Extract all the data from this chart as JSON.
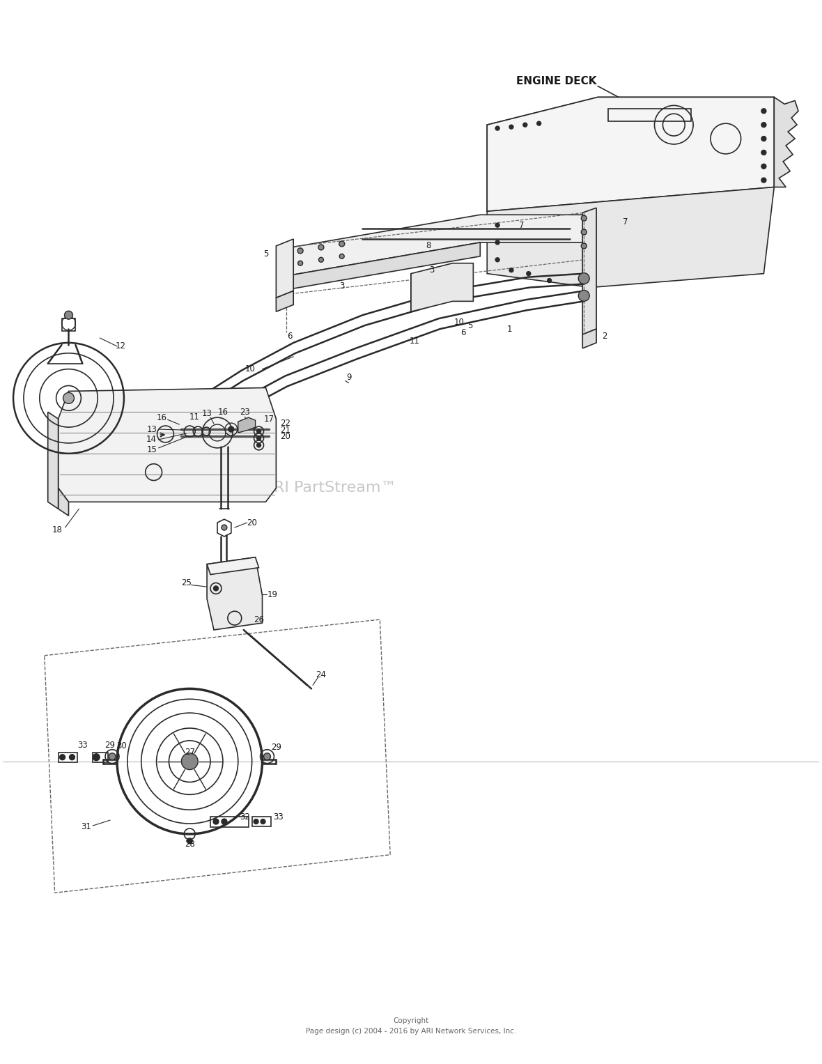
{
  "bg_color": "#ffffff",
  "fig_width": 11.8,
  "fig_height": 15.27,
  "copyright_line1": "Copyright",
  "copyright_line2": "Page design (c) 2004 - 2016 by ARI Network Services, Inc.",
  "watermark": "RI PartStream™",
  "engine_deck_label": "ENGINE DECK",
  "line_color": "#2a2a2a",
  "label_color": "#1a1a1a"
}
